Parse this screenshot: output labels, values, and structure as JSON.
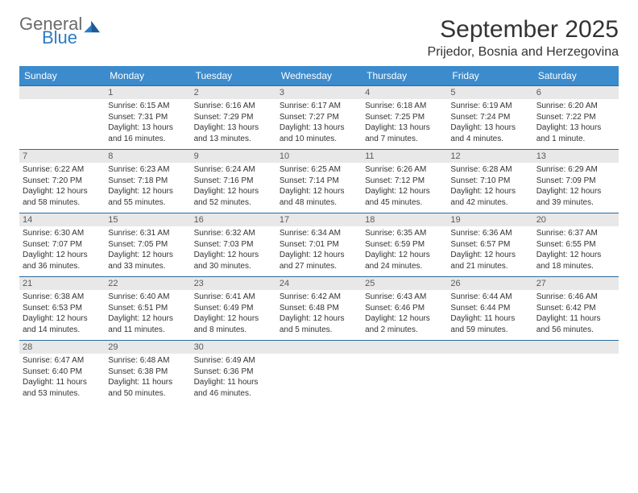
{
  "logo": {
    "line1": "General",
    "line2": "Blue"
  },
  "title": "September 2025",
  "location": "Prijedor, Bosnia and Herzegovina",
  "colors": {
    "header_bg": "#3b8bcd",
    "header_text": "#ffffff",
    "daynum_bg": "#e8e8e8",
    "daynum_border": "#2a6aa0",
    "logo_gray": "#6b6b6b",
    "logo_blue": "#2a7bc4"
  },
  "day_names": [
    "Sunday",
    "Monday",
    "Tuesday",
    "Wednesday",
    "Thursday",
    "Friday",
    "Saturday"
  ],
  "weeks": [
    [
      null,
      {
        "n": "1",
        "sr": "Sunrise: 6:15 AM",
        "ss": "Sunset: 7:31 PM",
        "dl": "Daylight: 13 hours and 16 minutes."
      },
      {
        "n": "2",
        "sr": "Sunrise: 6:16 AM",
        "ss": "Sunset: 7:29 PM",
        "dl": "Daylight: 13 hours and 13 minutes."
      },
      {
        "n": "3",
        "sr": "Sunrise: 6:17 AM",
        "ss": "Sunset: 7:27 PM",
        "dl": "Daylight: 13 hours and 10 minutes."
      },
      {
        "n": "4",
        "sr": "Sunrise: 6:18 AM",
        "ss": "Sunset: 7:25 PM",
        "dl": "Daylight: 13 hours and 7 minutes."
      },
      {
        "n": "5",
        "sr": "Sunrise: 6:19 AM",
        "ss": "Sunset: 7:24 PM",
        "dl": "Daylight: 13 hours and 4 minutes."
      },
      {
        "n": "6",
        "sr": "Sunrise: 6:20 AM",
        "ss": "Sunset: 7:22 PM",
        "dl": "Daylight: 13 hours and 1 minute."
      }
    ],
    [
      {
        "n": "7",
        "sr": "Sunrise: 6:22 AM",
        "ss": "Sunset: 7:20 PM",
        "dl": "Daylight: 12 hours and 58 minutes."
      },
      {
        "n": "8",
        "sr": "Sunrise: 6:23 AM",
        "ss": "Sunset: 7:18 PM",
        "dl": "Daylight: 12 hours and 55 minutes."
      },
      {
        "n": "9",
        "sr": "Sunrise: 6:24 AM",
        "ss": "Sunset: 7:16 PM",
        "dl": "Daylight: 12 hours and 52 minutes."
      },
      {
        "n": "10",
        "sr": "Sunrise: 6:25 AM",
        "ss": "Sunset: 7:14 PM",
        "dl": "Daylight: 12 hours and 48 minutes."
      },
      {
        "n": "11",
        "sr": "Sunrise: 6:26 AM",
        "ss": "Sunset: 7:12 PM",
        "dl": "Daylight: 12 hours and 45 minutes."
      },
      {
        "n": "12",
        "sr": "Sunrise: 6:28 AM",
        "ss": "Sunset: 7:10 PM",
        "dl": "Daylight: 12 hours and 42 minutes."
      },
      {
        "n": "13",
        "sr": "Sunrise: 6:29 AM",
        "ss": "Sunset: 7:09 PM",
        "dl": "Daylight: 12 hours and 39 minutes."
      }
    ],
    [
      {
        "n": "14",
        "sr": "Sunrise: 6:30 AM",
        "ss": "Sunset: 7:07 PM",
        "dl": "Daylight: 12 hours and 36 minutes."
      },
      {
        "n": "15",
        "sr": "Sunrise: 6:31 AM",
        "ss": "Sunset: 7:05 PM",
        "dl": "Daylight: 12 hours and 33 minutes."
      },
      {
        "n": "16",
        "sr": "Sunrise: 6:32 AM",
        "ss": "Sunset: 7:03 PM",
        "dl": "Daylight: 12 hours and 30 minutes."
      },
      {
        "n": "17",
        "sr": "Sunrise: 6:34 AM",
        "ss": "Sunset: 7:01 PM",
        "dl": "Daylight: 12 hours and 27 minutes."
      },
      {
        "n": "18",
        "sr": "Sunrise: 6:35 AM",
        "ss": "Sunset: 6:59 PM",
        "dl": "Daylight: 12 hours and 24 minutes."
      },
      {
        "n": "19",
        "sr": "Sunrise: 6:36 AM",
        "ss": "Sunset: 6:57 PM",
        "dl": "Daylight: 12 hours and 21 minutes."
      },
      {
        "n": "20",
        "sr": "Sunrise: 6:37 AM",
        "ss": "Sunset: 6:55 PM",
        "dl": "Daylight: 12 hours and 18 minutes."
      }
    ],
    [
      {
        "n": "21",
        "sr": "Sunrise: 6:38 AM",
        "ss": "Sunset: 6:53 PM",
        "dl": "Daylight: 12 hours and 14 minutes."
      },
      {
        "n": "22",
        "sr": "Sunrise: 6:40 AM",
        "ss": "Sunset: 6:51 PM",
        "dl": "Daylight: 12 hours and 11 minutes."
      },
      {
        "n": "23",
        "sr": "Sunrise: 6:41 AM",
        "ss": "Sunset: 6:49 PM",
        "dl": "Daylight: 12 hours and 8 minutes."
      },
      {
        "n": "24",
        "sr": "Sunrise: 6:42 AM",
        "ss": "Sunset: 6:48 PM",
        "dl": "Daylight: 12 hours and 5 minutes."
      },
      {
        "n": "25",
        "sr": "Sunrise: 6:43 AM",
        "ss": "Sunset: 6:46 PM",
        "dl": "Daylight: 12 hours and 2 minutes."
      },
      {
        "n": "26",
        "sr": "Sunrise: 6:44 AM",
        "ss": "Sunset: 6:44 PM",
        "dl": "Daylight: 11 hours and 59 minutes."
      },
      {
        "n": "27",
        "sr": "Sunrise: 6:46 AM",
        "ss": "Sunset: 6:42 PM",
        "dl": "Daylight: 11 hours and 56 minutes."
      }
    ],
    [
      {
        "n": "28",
        "sr": "Sunrise: 6:47 AM",
        "ss": "Sunset: 6:40 PM",
        "dl": "Daylight: 11 hours and 53 minutes."
      },
      {
        "n": "29",
        "sr": "Sunrise: 6:48 AM",
        "ss": "Sunset: 6:38 PM",
        "dl": "Daylight: 11 hours and 50 minutes."
      },
      {
        "n": "30",
        "sr": "Sunrise: 6:49 AM",
        "ss": "Sunset: 6:36 PM",
        "dl": "Daylight: 11 hours and 46 minutes."
      },
      null,
      null,
      null,
      null
    ]
  ]
}
